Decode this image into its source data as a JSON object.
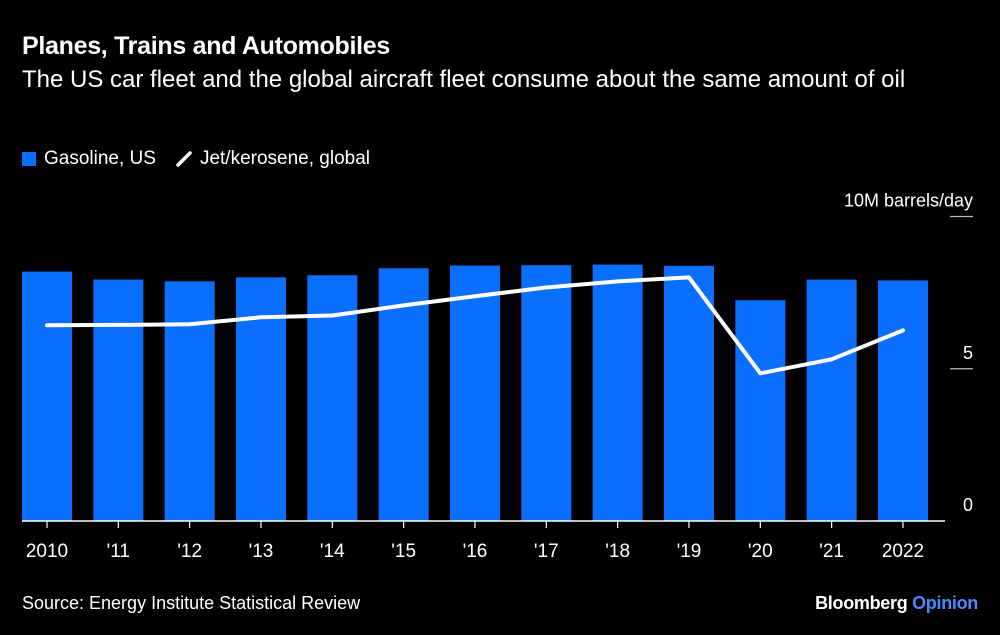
{
  "title": "Planes, Trains and Automobiles",
  "subtitle": "The US car fleet and the global aircraft fleet consume about the same amount of oil",
  "source": "Source: Energy Institute Statistical Review",
  "brand": {
    "name": "Bloomberg",
    "section": "Opinion"
  },
  "colors": {
    "bar": "#0A6FFF",
    "line": "#FFFFFF",
    "background": "#000000",
    "brand_accent": "#4A8CFF"
  },
  "chart_data": {
    "type": "bar+line",
    "categories": [
      "2010",
      "'11",
      "'12",
      "'13",
      "'14",
      "'15",
      "'16",
      "'17",
      "'18",
      "'19",
      "'20",
      "'21",
      "2022"
    ],
    "series": [
      {
        "name": "Gasoline, US",
        "type": "bar",
        "values": [
          8.19,
          7.93,
          7.87,
          8.0,
          8.07,
          8.3,
          8.39,
          8.4,
          8.42,
          8.38,
          7.25,
          7.93,
          7.9
        ]
      },
      {
        "name": "Jet/kerosene, global",
        "type": "line",
        "values": [
          6.43,
          6.44,
          6.46,
          6.69,
          6.75,
          7.08,
          7.38,
          7.67,
          7.87,
          8.0,
          4.85,
          5.31,
          6.26
        ]
      }
    ],
    "yaxis": {
      "label": "10M barrels/day",
      "ticks": [
        "0",
        "5",
        "10M barrels/day"
      ],
      "tick_values": [
        0,
        5,
        10
      ],
      "range": [
        0,
        10
      ],
      "position": "right"
    },
    "grid": false,
    "legend": "top-left"
  }
}
